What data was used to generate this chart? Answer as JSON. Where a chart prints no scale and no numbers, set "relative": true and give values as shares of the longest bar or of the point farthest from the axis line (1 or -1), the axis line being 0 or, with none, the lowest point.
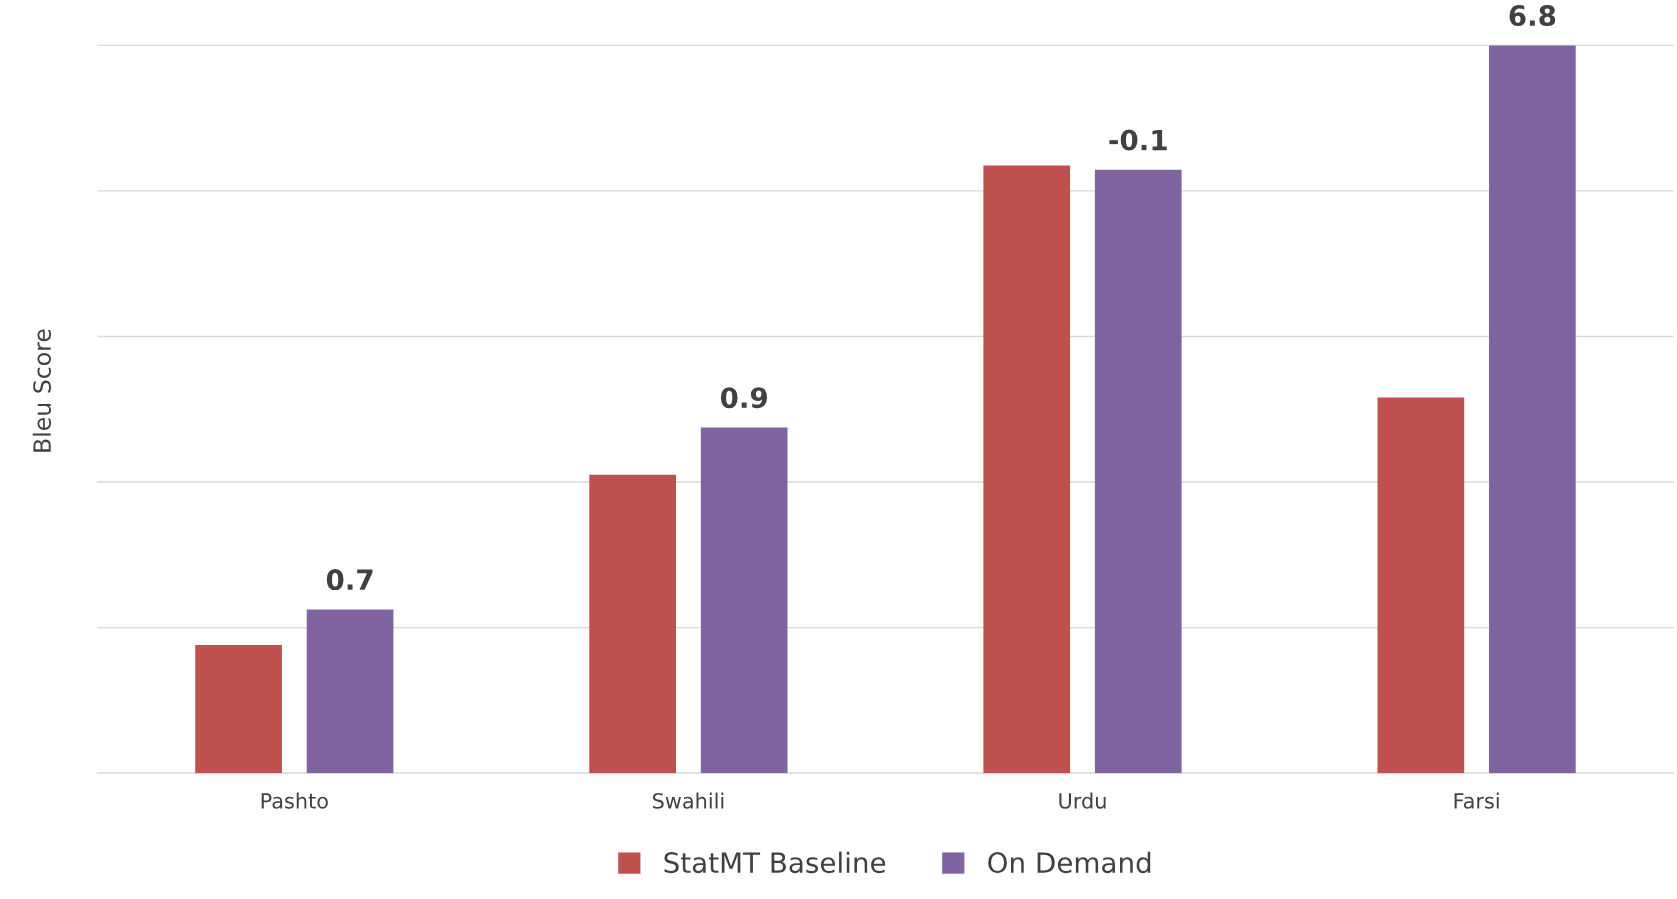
{
  "chart_data": {
    "type": "bar",
    "relative": true,
    "ylabel": "Bleu Score",
    "categories": [
      "Pashto",
      "Swahili",
      "Urdu",
      "Farsi"
    ],
    "series": [
      {
        "name": "StatMT Baseline",
        "color": "#c0504d",
        "values": [
          0.176,
          0.41,
          0.835,
          0.516
        ]
      },
      {
        "name": "On Demand",
        "color": "#8064a2",
        "values": [
          0.225,
          0.475,
          0.829,
          1.0
        ]
      }
    ],
    "annotations": [
      "0.7",
      "0.9",
      "-0.1",
      "6.8"
    ],
    "grid": "y",
    "legend": "bottom"
  }
}
